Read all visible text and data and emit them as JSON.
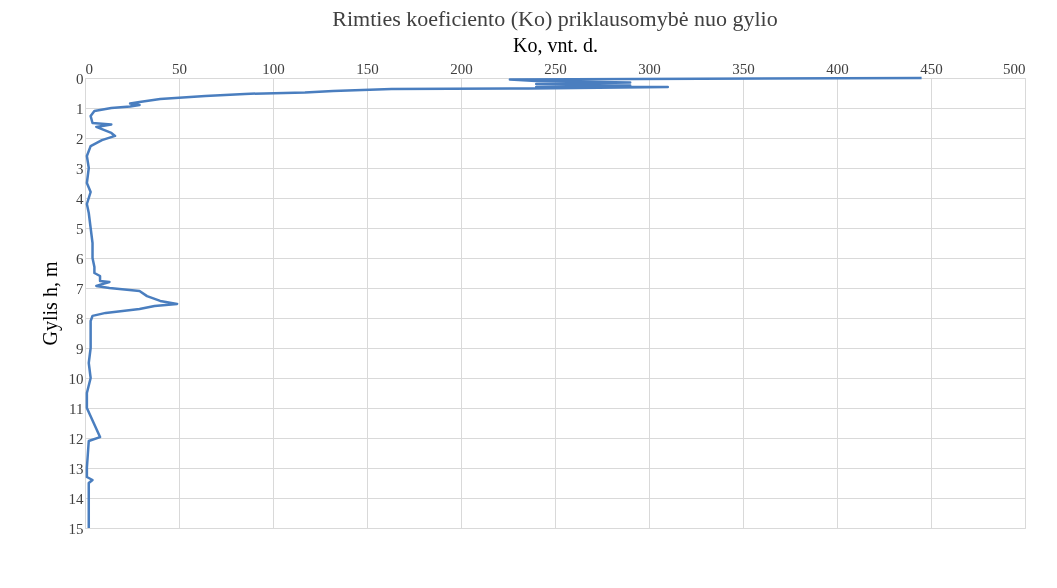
{
  "chart_data": {
    "type": "line",
    "title": "Rimties koeficiento (Ko) priklausomybė nuo gylio",
    "xlabel": "Ko, vnt. d.",
    "ylabel": "Gylis h, m",
    "xlim": [
      0,
      500
    ],
    "xticks": [
      0,
      50,
      100,
      150,
      200,
      250,
      300,
      350,
      400,
      450,
      500
    ],
    "ylim": [
      15,
      0
    ],
    "yticks": [
      0,
      1,
      2,
      3,
      4,
      5,
      6,
      7,
      8,
      9,
      10,
      11,
      12,
      13,
      14,
      15
    ],
    "grid": true,
    "marker": "none",
    "line_style": "solid",
    "series": [
      {
        "color": "#4a7ebf",
        "x": [
          445,
          226,
          240,
          290,
          240,
          290,
          240,
          310,
          236,
          163,
          132,
          117,
          85,
          64,
          40,
          29,
          24,
          29,
          24,
          14,
          5,
          3,
          4,
          14,
          6,
          14,
          16,
          9,
          3,
          1,
          2,
          1,
          3,
          1,
          2,
          3,
          4,
          4,
          5,
          5,
          8,
          8,
          13,
          6,
          13,
          29,
          33,
          40,
          49,
          37,
          29,
          11,
          4,
          3,
          3,
          2,
          3,
          1,
          1,
          8,
          2,
          1,
          1,
          4,
          2,
          2
        ],
        "values": [
          0,
          0.05,
          0.1,
          0.15,
          0.2,
          0.25,
          0.3,
          0.3,
          0.35,
          0.37,
          0.43,
          0.48,
          0.53,
          0.6,
          0.7,
          0.8,
          0.85,
          0.9,
          0.95,
          1.0,
          1.1,
          1.27,
          1.5,
          1.55,
          1.63,
          1.83,
          1.93,
          2.07,
          2.27,
          2.6,
          3.0,
          3.5,
          3.8,
          4.2,
          4.5,
          5.0,
          5.5,
          6.0,
          6.3,
          6.5,
          6.6,
          6.77,
          6.8,
          6.93,
          7.0,
          7.1,
          7.27,
          7.43,
          7.53,
          7.6,
          7.7,
          7.83,
          7.93,
          8.1,
          9.0,
          9.5,
          10.0,
          10.5,
          11.0,
          11.97,
          12.1,
          13.0,
          13.3,
          13.4,
          13.5,
          15.0
        ]
      }
    ]
  }
}
